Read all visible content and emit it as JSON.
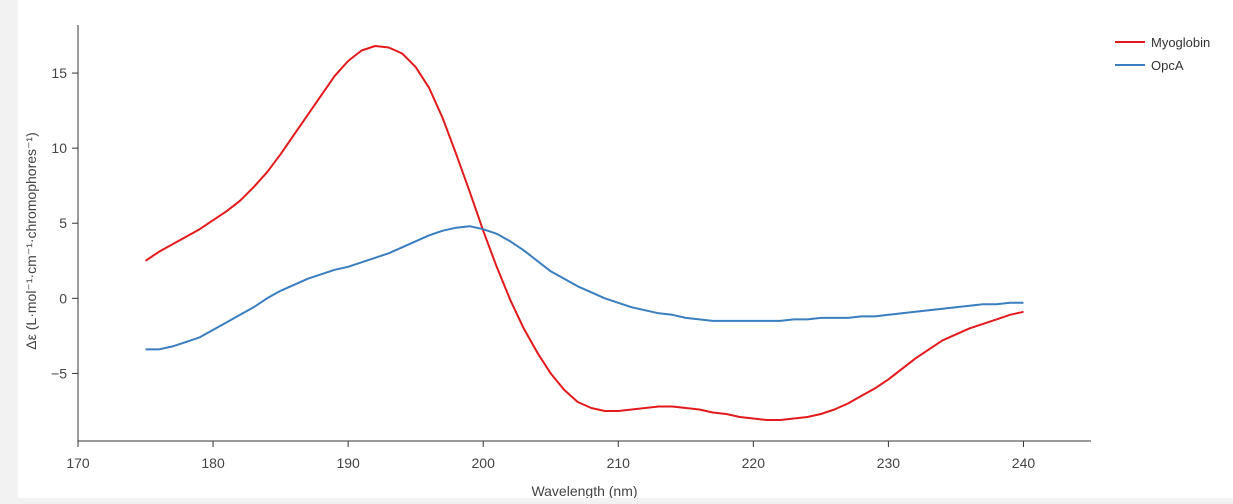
{
  "chart_data": {
    "type": "line",
    "xlabel": "Wavelength (nm)",
    "ylabel": "Δε (L·mol⁻¹·cm⁻¹·chromophores⁻¹)",
    "xlim": [
      170,
      245
    ],
    "ylim": [
      -9.5,
      18.2
    ],
    "xticks": [
      170,
      180,
      190,
      200,
      210,
      220,
      230,
      240
    ],
    "yticks": [
      -5,
      0,
      5,
      10,
      15
    ],
    "ytick_labels": [
      "−5",
      "0",
      "5",
      "10",
      "15"
    ],
    "grid": false,
    "legend_position": "top-right",
    "series": [
      {
        "name": "Myoglobin",
        "color": "#e31a1c",
        "x": [
          175,
          176,
          177,
          178,
          179,
          180,
          181,
          182,
          183,
          184,
          185,
          186,
          187,
          188,
          189,
          190,
          191,
          192,
          193,
          194,
          195,
          196,
          197,
          198,
          199,
          200,
          201,
          202,
          203,
          204,
          205,
          206,
          207,
          208,
          209,
          210,
          211,
          212,
          213,
          214,
          215,
          216,
          217,
          218,
          219,
          220,
          221,
          222,
          223,
          224,
          225,
          226,
          227,
          228,
          229,
          230,
          231,
          232,
          233,
          234,
          235,
          236,
          237,
          238,
          239,
          240
        ],
        "y": [
          2.5,
          3.1,
          3.6,
          4.1,
          4.6,
          5.2,
          5.8,
          6.5,
          7.4,
          8.4,
          9.6,
          10.9,
          12.2,
          13.5,
          14.8,
          15.8,
          16.5,
          16.8,
          16.7,
          16.3,
          15.4,
          14.0,
          12.0,
          9.6,
          7.1,
          4.5,
          2.1,
          -0.1,
          -2.0,
          -3.6,
          -5.0,
          -6.1,
          -6.9,
          -7.3,
          -7.5,
          -7.5,
          -7.4,
          -7.3,
          -7.2,
          -7.2,
          -7.3,
          -7.4,
          -7.6,
          -7.7,
          -7.9,
          -8.0,
          -8.1,
          -8.1,
          -8.0,
          -7.9,
          -7.7,
          -7.4,
          -7.0,
          -6.5,
          -6.0,
          -5.4,
          -4.7,
          -4.0,
          -3.4,
          -2.8,
          -2.4,
          -2.0,
          -1.7,
          -1.4,
          -1.1,
          -0.9
        ]
      },
      {
        "name": "OpcA",
        "color": "#3a7ebf",
        "x": [
          175,
          176,
          177,
          178,
          179,
          180,
          181,
          182,
          183,
          184,
          185,
          186,
          187,
          188,
          189,
          190,
          191,
          192,
          193,
          194,
          195,
          196,
          197,
          198,
          199,
          200,
          201,
          202,
          203,
          204,
          205,
          206,
          207,
          208,
          209,
          210,
          211,
          212,
          213,
          214,
          215,
          216,
          217,
          218,
          219,
          220,
          221,
          222,
          223,
          224,
          225,
          226,
          227,
          228,
          229,
          230,
          231,
          232,
          233,
          234,
          235,
          236,
          237,
          238,
          239,
          240
        ],
        "y": [
          -3.4,
          -3.4,
          -3.2,
          -2.9,
          -2.6,
          -2.1,
          -1.6,
          -1.1,
          -0.6,
          0.0,
          0.5,
          0.9,
          1.3,
          1.6,
          1.9,
          2.1,
          2.4,
          2.7,
          3.0,
          3.4,
          3.8,
          4.2,
          4.5,
          4.7,
          4.8,
          4.6,
          4.3,
          3.8,
          3.2,
          2.5,
          1.8,
          1.3,
          0.8,
          0.4,
          0.0,
          -0.3,
          -0.6,
          -0.8,
          -1.0,
          -1.1,
          -1.3,
          -1.4,
          -1.5,
          -1.5,
          -1.5,
          -1.5,
          -1.5,
          -1.5,
          -1.4,
          -1.4,
          -1.3,
          -1.3,
          -1.3,
          -1.2,
          -1.2,
          -1.1,
          -1.0,
          -0.9,
          -0.8,
          -0.7,
          -0.6,
          -0.5,
          -0.4,
          -0.4,
          -0.3,
          -0.3
        ]
      }
    ]
  }
}
